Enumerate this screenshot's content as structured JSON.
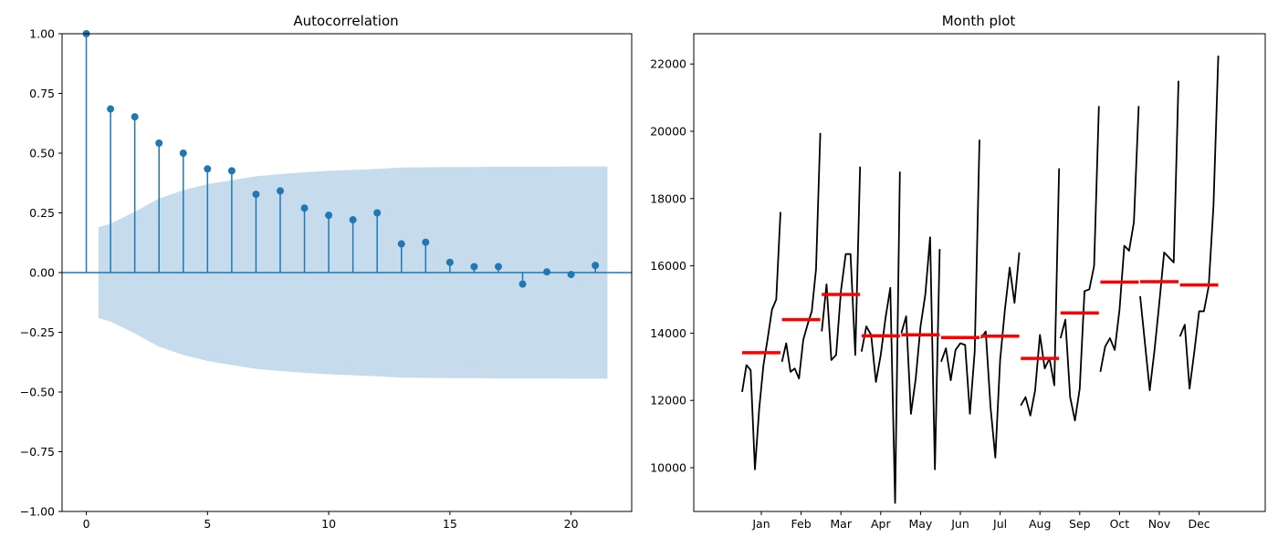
{
  "chart_data": [
    {
      "type": "stem",
      "title": "Autocorrelation",
      "xlim": [
        -1,
        22.5
      ],
      "ylim": [
        -1.0,
        1.0
      ],
      "xticks": [
        0,
        5,
        10,
        15,
        20
      ],
      "yticks": [
        -1.0,
        -0.75,
        -0.5,
        -0.25,
        0.0,
        0.25,
        0.5,
        0.75,
        1.0
      ],
      "ytick_labels": [
        "−1.00",
        "−0.75",
        "−0.50",
        "−0.25",
        "0.00",
        "0.25",
        "0.50",
        "0.75",
        "1.00"
      ],
      "lags": [
        0,
        1,
        2,
        3,
        4,
        5,
        6,
        7,
        8,
        9,
        10,
        11,
        12,
        13,
        14,
        15,
        16,
        17,
        18,
        19,
        20,
        21
      ],
      "acf": [
        1.0,
        0.685,
        0.652,
        0.542,
        0.5,
        0.434,
        0.426,
        0.328,
        0.342,
        0.27,
        0.24,
        0.221,
        0.25,
        0.12,
        0.127,
        0.043,
        0.025,
        0.025,
        -0.048,
        0.003,
        -0.008,
        0.03
      ],
      "confint_lags": [
        0.5,
        1,
        2,
        3,
        4,
        5,
        6,
        7,
        8,
        9,
        10,
        11,
        12,
        13,
        14,
        15,
        16,
        17,
        18,
        19,
        20,
        21,
        21.5
      ],
      "confint_upper": [
        0.19,
        0.205,
        0.255,
        0.31,
        0.345,
        0.37,
        0.387,
        0.403,
        0.412,
        0.42,
        0.426,
        0.43,
        0.434,
        0.44,
        0.441,
        0.442,
        0.442,
        0.443,
        0.443,
        0.443,
        0.444,
        0.444,
        0.444
      ],
      "stem_color": "#1f77b4",
      "band_color": "#c6dbec"
    },
    {
      "type": "line",
      "title": "Month plot",
      "months": [
        "Jan",
        "Feb",
        "Mar",
        "Apr",
        "May",
        "Jun",
        "Jul",
        "Aug",
        "Sep",
        "Oct",
        "Nov",
        "Dec"
      ],
      "ylim": [
        8700,
        22900
      ],
      "yticks": [
        10000,
        12000,
        14000,
        16000,
        18000,
        20000,
        22000
      ],
      "series": [
        {
          "month": "Jan",
          "values": [
            12250,
            13050,
            12900,
            9950,
            11750,
            13050,
            13850,
            14700,
            15000,
            17600
          ],
          "mean": 13420
        },
        {
          "month": "Feb",
          "values": [
            13150,
            13700,
            12850,
            12950,
            12650,
            13800,
            14250,
            14650,
            15900,
            19950
          ],
          "mean": 14400
        },
        {
          "month": "Mar",
          "values": [
            14050,
            15450,
            13200,
            13350,
            15250,
            16350,
            16350,
            13350,
            18950
          ],
          "mean": 15150
        },
        {
          "month": "Apr",
          "values": [
            13450,
            14200,
            13950,
            12550,
            13350,
            14450,
            15350,
            8950,
            18800
          ],
          "mean": 13920
        },
        {
          "month": "May",
          "values": [
            14000,
            14500,
            11600,
            12650,
            14200,
            15150,
            16850,
            9950,
            16500
          ],
          "mean": 13950
        },
        {
          "month": "Jun",
          "values": [
            13150,
            13550,
            12600,
            13500,
            13700,
            13650,
            11600,
            13450,
            19750
          ],
          "mean": 13870
        },
        {
          "month": "Jul",
          "values": [
            13850,
            14050,
            11800,
            10300,
            13200,
            14700,
            15950,
            14900,
            16400
          ],
          "mean": 13910
        },
        {
          "month": "Aug",
          "values": [
            11850,
            12100,
            11550,
            12300,
            13950,
            12950,
            13250,
            12450,
            18900
          ],
          "mean": 13250
        },
        {
          "month": "Sep",
          "values": [
            13850,
            14400,
            12100,
            11400,
            12350,
            15250,
            15300,
            16000,
            20750
          ],
          "mean": 14600
        },
        {
          "month": "Oct",
          "values": [
            12850,
            13600,
            13850,
            13500,
            14700,
            16600,
            16450,
            17300,
            20750
          ],
          "mean": 15520
        },
        {
          "month": "Nov",
          "values": [
            15100,
            13700,
            12300,
            13500,
            14900,
            16400,
            16250,
            16100,
            21500
          ],
          "mean": 15530
        },
        {
          "month": "Dec",
          "values": [
            13900,
            14250,
            12350,
            13450,
            14650,
            14650,
            15400,
            17800,
            22250
          ],
          "mean": 15430
        }
      ],
      "line_color": "#000000",
      "mean_color": "#ff0000"
    }
  ]
}
